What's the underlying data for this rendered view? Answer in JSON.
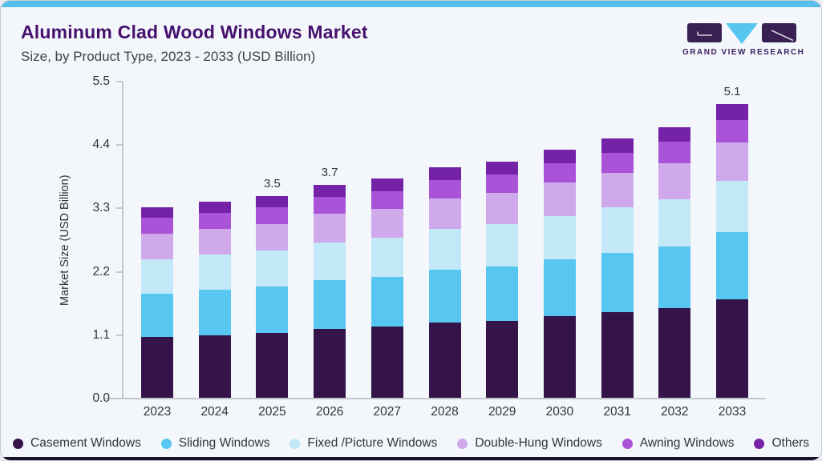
{
  "header": {
    "title": "Aluminum Clad Wood Windows Market",
    "subtitle": "Size, by Product Type, 2023 - 2033 (USD Billion)",
    "brand": "GRAND VIEW RESEARCH"
  },
  "colors": {
    "top_accent": "#58bfec",
    "bottom_accent": "#171430",
    "card_bg": "#f3f7fb",
    "title_purple": "#45106e",
    "logo_purple": "#3a2052",
    "logo_cyan": "#56c5f0",
    "axis_line": "#c3c8cf"
  },
  "chart_data": {
    "type": "bar",
    "stacked": true,
    "title": "Aluminum Clad Wood Windows Market Size, by Product Type, 2023 - 2033 (USD Billion)",
    "xlabel": "",
    "ylabel": "Market Size (USD Billion)",
    "ylim": [
      0,
      5.5
    ],
    "yticks": [
      "0.0",
      "1.1",
      "2.2",
      "3.3",
      "4.4",
      "5.5"
    ],
    "grid": false,
    "legend_position": "bottom",
    "categories": [
      "2023",
      "2024",
      "2025",
      "2026",
      "2027",
      "2028",
      "2029",
      "2030",
      "2031",
      "2032",
      "2033"
    ],
    "series": [
      {
        "name": "Casement Windows",
        "color": "#341449",
        "values": [
          1.05,
          1.09,
          1.13,
          1.19,
          1.23,
          1.3,
          1.34,
          1.42,
          1.49,
          1.56,
          1.71
        ]
      },
      {
        "name": "Sliding Windows",
        "color": "#57c7f2",
        "values": [
          0.76,
          0.78,
          0.8,
          0.85,
          0.87,
          0.92,
          0.94,
          0.98,
          1.03,
          1.07,
          1.17
        ]
      },
      {
        "name": "Fixed /Picture Windows",
        "color": "#c3e8f8",
        "values": [
          0.6,
          0.61,
          0.63,
          0.66,
          0.68,
          0.71,
          0.73,
          0.76,
          0.79,
          0.82,
          0.88
        ]
      },
      {
        "name": "Double-Hung Windows",
        "color": "#cfa9ec",
        "values": [
          0.44,
          0.45,
          0.46,
          0.49,
          0.5,
          0.53,
          0.54,
          0.57,
          0.59,
          0.62,
          0.67
        ]
      },
      {
        "name": "Awning Windows",
        "color": "#a953d8",
        "values": [
          0.27,
          0.28,
          0.28,
          0.3,
          0.31,
          0.32,
          0.33,
          0.34,
          0.35,
          0.37,
          0.39
        ]
      },
      {
        "name": "Others",
        "color": "#7423a8",
        "values": [
          0.18,
          0.19,
          0.2,
          0.21,
          0.21,
          0.22,
          0.22,
          0.23,
          0.25,
          0.26,
          0.28
        ]
      }
    ],
    "totals": [
      3.3,
      3.4,
      3.5,
      3.7,
      3.8,
      4.0,
      4.1,
      4.3,
      4.5,
      4.7,
      5.1
    ],
    "total_labels": [
      "",
      "",
      "3.5",
      "3.7",
      "",
      "",
      "",
      "",
      "",
      "",
      "5.1"
    ]
  }
}
